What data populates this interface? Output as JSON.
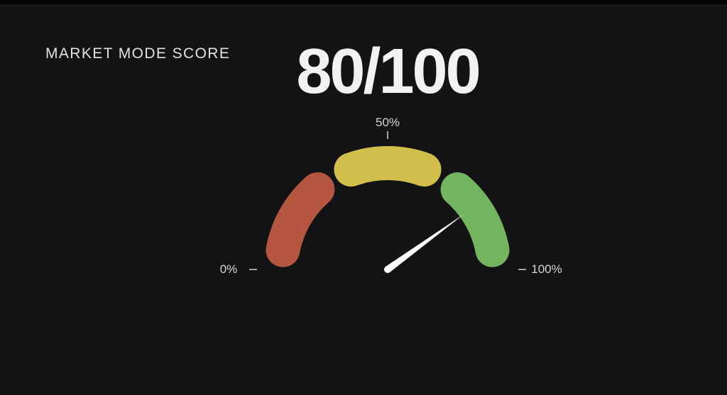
{
  "window": {
    "background": "#131316",
    "top_strip_color": "#060607",
    "divider_color": "#26262a"
  },
  "header": {
    "title": "MARKET MODE SCORE"
  },
  "chart_data": {
    "type": "gauge",
    "title": "MARKET MODE SCORE",
    "value": 80,
    "max": 100,
    "value_display": "80/100",
    "start_angle_deg": 180,
    "end_angle_deg": 0,
    "segments": [
      {
        "name": "low",
        "from_pct": 0,
        "to_pct": 33,
        "color": "#b55640"
      },
      {
        "name": "mid",
        "from_pct": 33,
        "to_pct": 67,
        "color": "#d2be4a"
      },
      {
        "name": "high",
        "from_pct": 67,
        "to_pct": 100,
        "color": "#73b55f"
      }
    ],
    "ticks": [
      {
        "pct": 0,
        "label": "0%"
      },
      {
        "pct": 50,
        "label": "50%"
      },
      {
        "pct": 100,
        "label": "100%"
      }
    ],
    "needle_color": "#ffffff",
    "tick_color": "#a3a3a6",
    "label_color": "#d6d6d7",
    "title_color": "#e2e2e3",
    "value_color": "#f2f2f3"
  }
}
